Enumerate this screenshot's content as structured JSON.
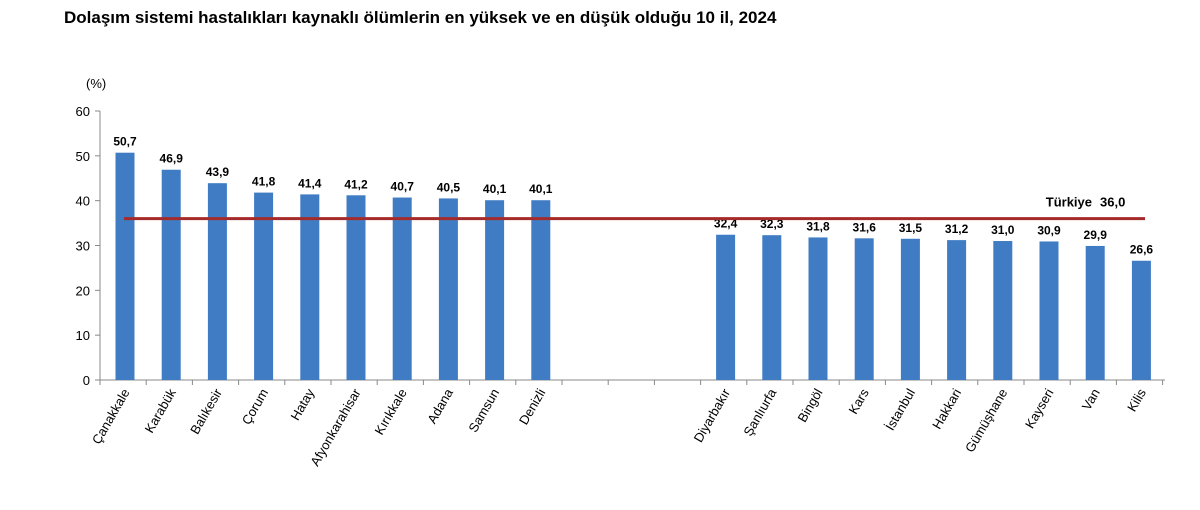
{
  "title": "Dolaşım sistemi hastalıkları kaynaklı ölümlerin en yüksek ve en düşük olduğu 10 il, 2024",
  "chart_data": {
    "type": "bar",
    "ylabel": "(%)",
    "ylim": [
      0,
      60
    ],
    "yticks": [
      "0",
      "10",
      "20",
      "30",
      "40",
      "50",
      "60"
    ],
    "grid": false,
    "bar_color": "#3f7cc4",
    "reference_color": "#a52a2a",
    "groups": [
      {
        "categories": [
          "Çanakkale",
          "Karabük",
          "Balıkesir",
          "Çorum",
          "Hatay",
          "Afyonkarahisar",
          "Kırıkkale",
          "Adana",
          "Samsun",
          "Denizli"
        ],
        "values": [
          50.7,
          46.9,
          43.9,
          41.8,
          41.4,
          41.2,
          40.7,
          40.5,
          40.1,
          40.1
        ],
        "labels": [
          "50,7",
          "46,9",
          "43,9",
          "41,8",
          "41,4",
          "41,2",
          "40,7",
          "40,5",
          "40,1",
          "40,1"
        ]
      },
      {
        "categories": [
          "Diyarbakır",
          "Şanlıurfa",
          "Bingöl",
          "Kars",
          "İstanbul",
          "Hakkari",
          "Gümüşhane",
          "Kayseri",
          "Van",
          "Kilis"
        ],
        "values": [
          32.4,
          32.3,
          31.8,
          31.6,
          31.5,
          31.2,
          31.0,
          30.9,
          29.9,
          26.6
        ],
        "labels": [
          "32,4",
          "32,3",
          "31,8",
          "31,6",
          "31,5",
          "31,2",
          "31,0",
          "30,9",
          "29,9",
          "26,6"
        ]
      }
    ],
    "reference": {
      "name": "Türkiye",
      "value": 36.0,
      "label": "36,0"
    }
  }
}
